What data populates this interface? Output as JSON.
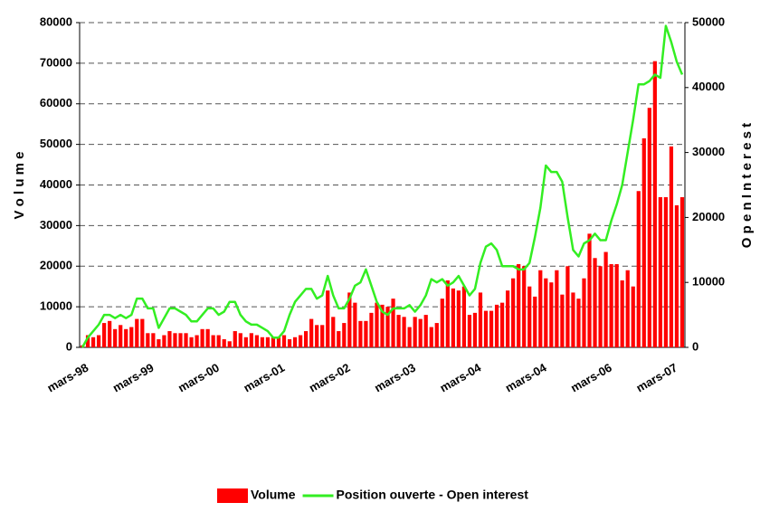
{
  "chart_data": {
    "type": "bar",
    "ylabel": "V o l u m e",
    "y2label": "O p e n   I n t e r e s t",
    "categories": [
      "mars-98",
      null,
      null,
      null,
      null,
      null,
      null,
      null,
      null,
      null,
      null,
      null,
      "mars-99",
      null,
      null,
      null,
      null,
      null,
      null,
      null,
      null,
      null,
      null,
      null,
      "mars-00",
      null,
      null,
      null,
      null,
      null,
      null,
      null,
      null,
      null,
      null,
      null,
      "mars-01",
      null,
      null,
      null,
      null,
      null,
      null,
      null,
      null,
      null,
      null,
      null,
      "mars-02",
      null,
      null,
      null,
      null,
      null,
      null,
      null,
      null,
      null,
      null,
      null,
      "mars-03",
      null,
      null,
      null,
      null,
      null,
      null,
      null,
      null,
      null,
      null,
      null,
      "mars-04",
      null,
      null,
      null,
      null,
      null,
      null,
      null,
      null,
      null,
      null,
      null,
      "mars-04",
      null,
      null,
      null,
      null,
      null,
      null,
      null,
      null,
      null,
      null,
      null,
      "mars-06",
      null,
      null,
      null,
      null,
      null,
      null,
      null,
      null,
      null,
      null,
      null,
      "mars-07",
      null,
      null
    ],
    "series": [
      {
        "name": "Volume",
        "color": "#ff0000",
        "values": [
          500,
          3000,
          2500,
          3000,
          6000,
          6500,
          4500,
          5500,
          4500,
          5000,
          7000,
          7000,
          3500,
          3500,
          2000,
          3000,
          4000,
          3500,
          3500,
          3500,
          2500,
          3000,
          4500,
          4500,
          3000,
          3000,
          2000,
          1500,
          4000,
          3500,
          2500,
          3500,
          3000,
          2500,
          2500,
          2500,
          2500,
          3000,
          2000,
          2500,
          3000,
          4000,
          7000,
          5500,
          5500,
          14000,
          7500,
          4000,
          6000,
          13500,
          11000,
          6500,
          6500,
          8500,
          11000,
          10500,
          10000,
          12000,
          8000,
          7500,
          5000,
          7500,
          7000,
          8000,
          5000,
          6000,
          12000,
          16500,
          14500,
          14000,
          15000,
          8000,
          8500,
          13500,
          9000,
          9000,
          10500,
          11000,
          14000,
          17000,
          20500,
          20000,
          15000,
          12500,
          19000,
          17000,
          16000,
          19000,
          13000,
          20000,
          13500,
          12000,
          17000,
          28000,
          22000,
          20000,
          23500,
          20500,
          20500,
          16500,
          19000,
          15000,
          38500,
          51500,
          59000,
          70500,
          37000,
          37000,
          49500,
          35000,
          37000
        ]
      },
      {
        "name": "Position ouverte - Open interest",
        "color": "#33ee22",
        "type": "line",
        "axis": "y2",
        "values": [
          0,
          1500,
          2500,
          3500,
          5000,
          5000,
          4500,
          5000,
          4500,
          5000,
          7500,
          7500,
          6000,
          6000,
          3000,
          4500,
          6000,
          6000,
          5500,
          5000,
          4000,
          4000,
          5000,
          6000,
          6000,
          5000,
          5500,
          7000,
          7000,
          5000,
          4000,
          3500,
          3500,
          3000,
          2500,
          1500,
          1500,
          2500,
          5000,
          7000,
          8000,
          9000,
          9000,
          7500,
          8000,
          11000,
          8000,
          6000,
          6000,
          7500,
          9500,
          10000,
          12000,
          9500,
          7000,
          5500,
          5000,
          6000,
          6000,
          6000,
          6500,
          5500,
          6500,
          8000,
          10500,
          10000,
          10500,
          9500,
          10000,
          11000,
          9500,
          8000,
          9000,
          13000,
          15500,
          16000,
          15000,
          12500,
          12500,
          12500,
          12000,
          12000,
          13000,
          17000,
          21500,
          28000,
          27000,
          27000,
          25500,
          20000,
          15000,
          14000,
          16000,
          16500,
          17500,
          16500,
          16500,
          19500,
          22000,
          25000,
          30000,
          35000,
          40500,
          40500,
          41000,
          42000,
          41500,
          49500,
          47000,
          44000,
          42000
        ]
      }
    ],
    "ylim": [
      0,
      80000
    ],
    "yticks": [
      0,
      10000,
      20000,
      30000,
      40000,
      50000,
      60000,
      70000,
      80000
    ],
    "y2lim": [
      0,
      50000
    ],
    "y2ticks": [
      0,
      10000,
      20000,
      30000,
      40000,
      50000
    ],
    "grid": true,
    "legend": "bottom"
  }
}
